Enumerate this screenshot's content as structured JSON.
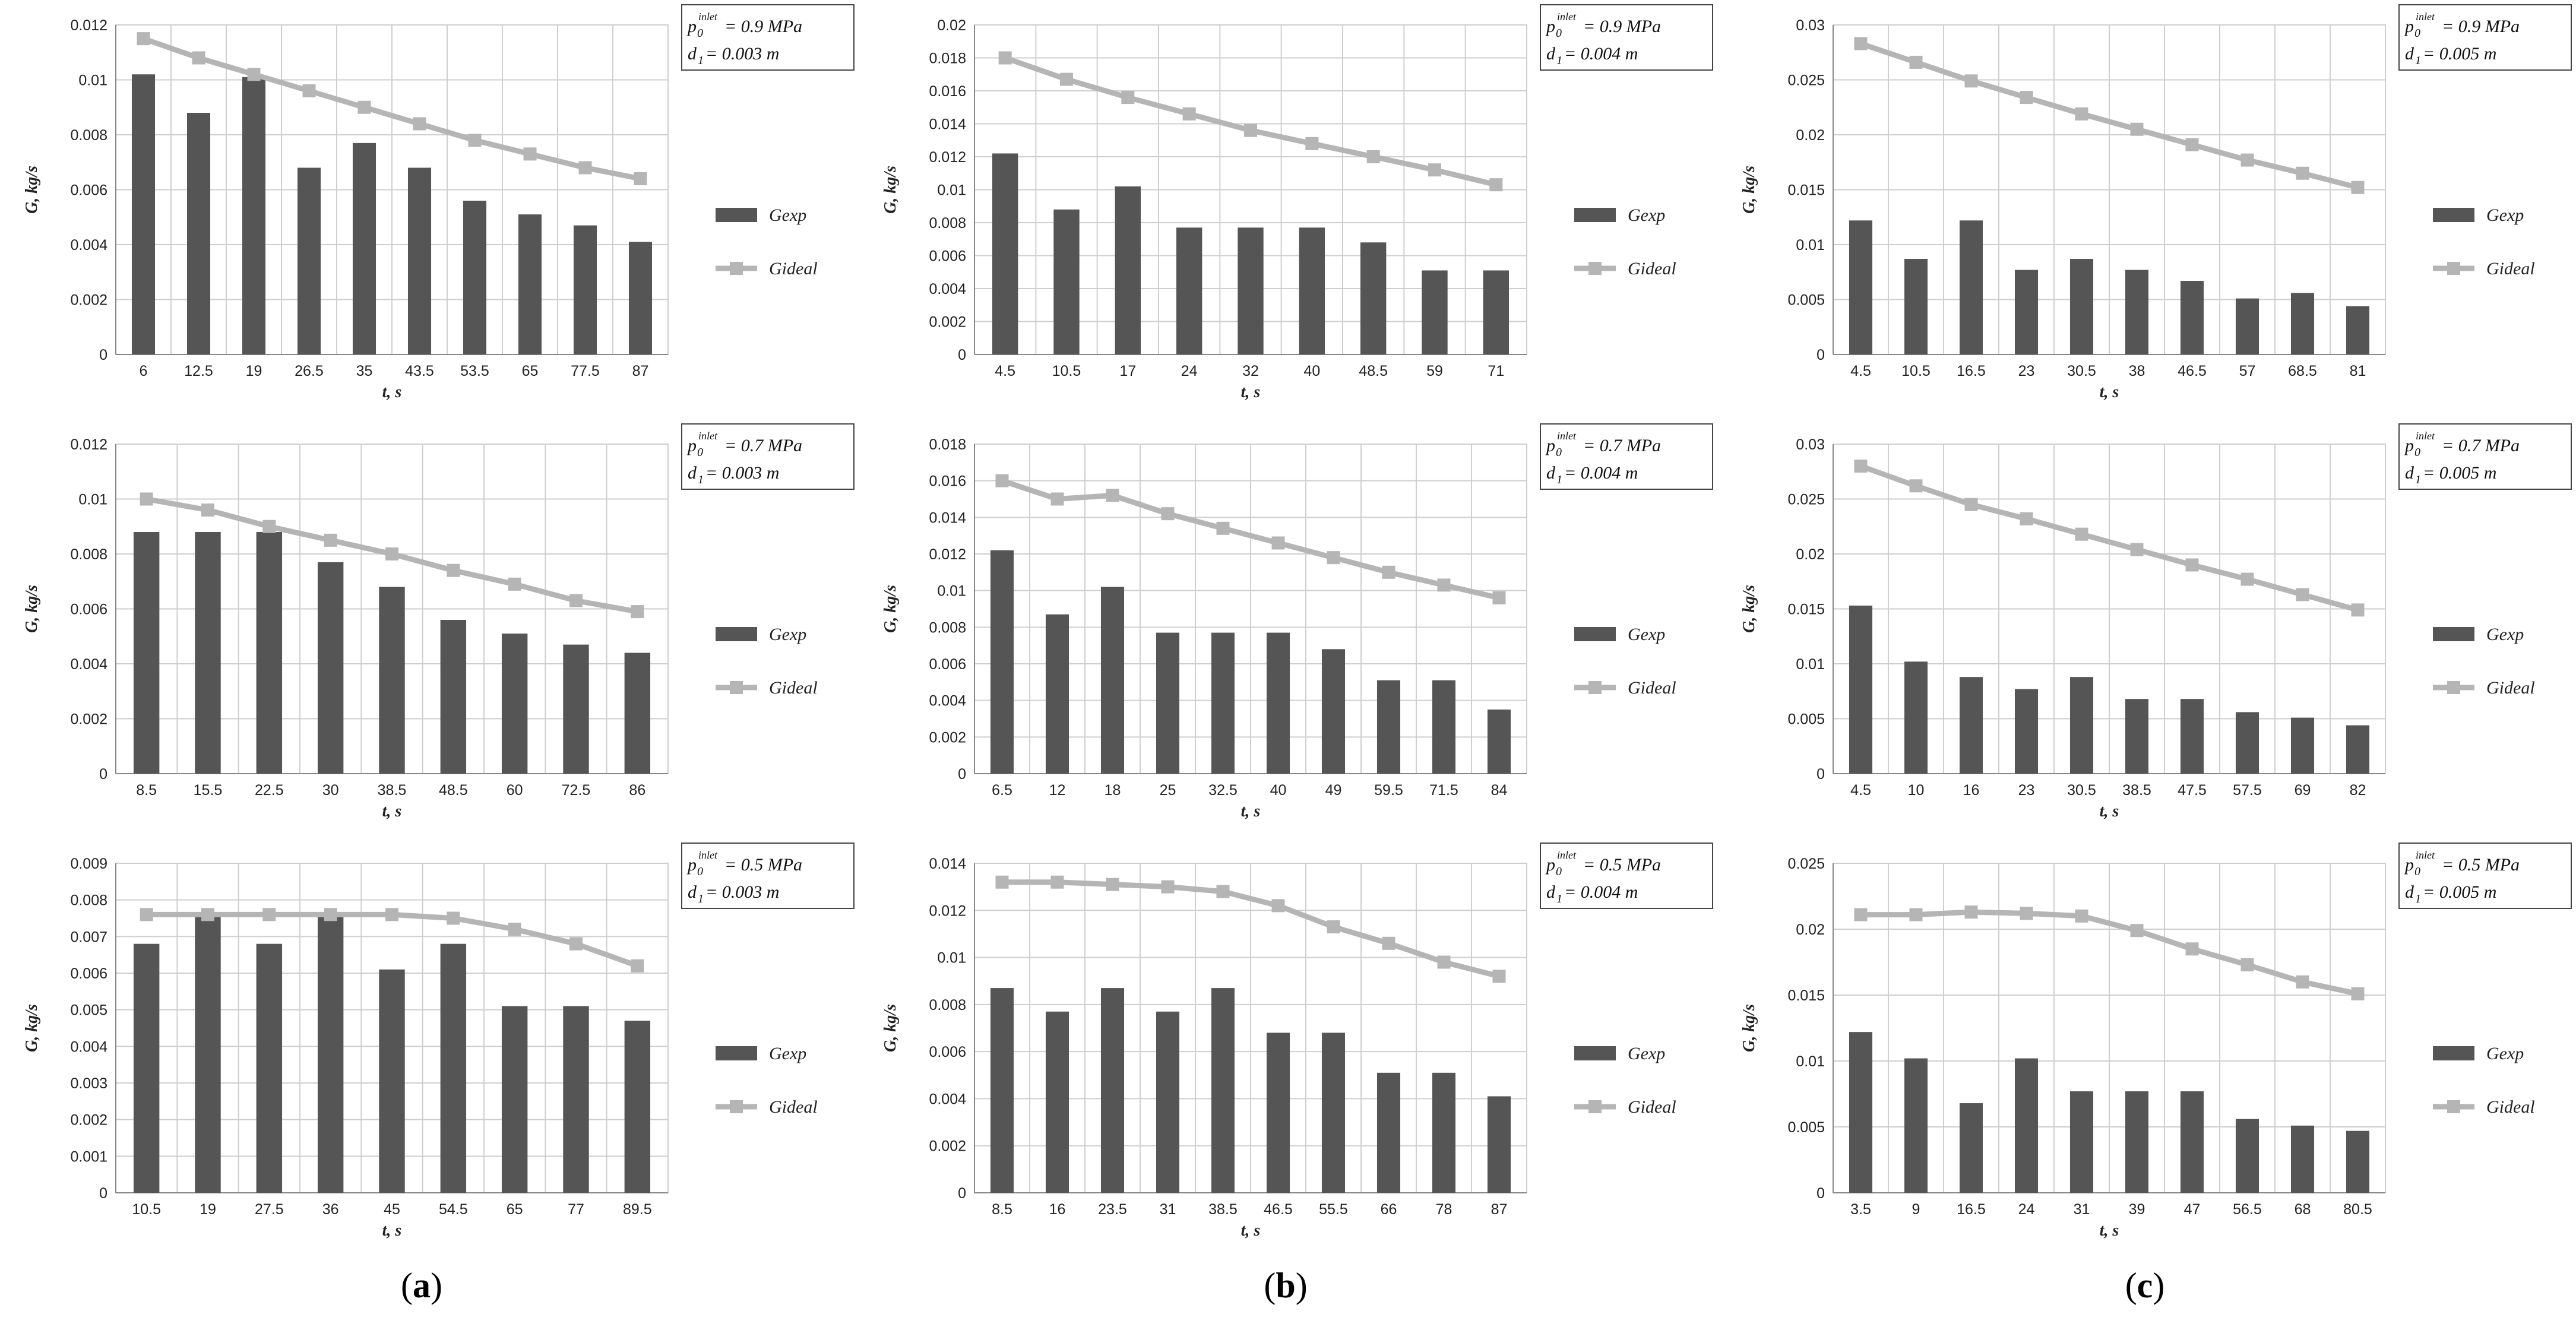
{
  "colors": {
    "gexp": "#555555",
    "gideal": "#b5b5b5",
    "grid": "#cfcfcf",
    "box": "#444444"
  },
  "column_labels": [
    {
      "open": "(",
      "letter": "a",
      "close": ")"
    },
    {
      "open": "(",
      "letter": "b",
      "close": ")"
    },
    {
      "open": "(",
      "letter": "c",
      "close": ")"
    }
  ],
  "chart_data": [
    {
      "id": "a1",
      "type": "bar",
      "title": "",
      "xlabel": "t, s",
      "ylabel": "G, kg/s",
      "ylim": [
        0,
        0.012
      ],
      "yticks": [
        "0",
        "0.002",
        "0.004",
        "0.006",
        "0.008",
        "0.01",
        "0.012"
      ],
      "categories": [
        "6",
        "12.5",
        "19",
        "26.5",
        "35",
        "43.5",
        "53.5",
        "65",
        "77.5",
        "87"
      ],
      "series": [
        {
          "name": "Gexp",
          "kind": "bar",
          "values": [
            0.0102,
            0.0088,
            0.0101,
            0.0068,
            0.0077,
            0.0068,
            0.0056,
            0.0051,
            0.0047,
            0.0041
          ]
        },
        {
          "name": "Gideal",
          "kind": "line",
          "values": [
            0.0115,
            0.0108,
            0.0102,
            0.0096,
            0.009,
            0.0084,
            0.0078,
            0.0073,
            0.0068,
            0.0064
          ]
        }
      ],
      "params": {
        "p_label": "p",
        "p_sup": "inlet",
        "p_sub": "0",
        "p_value": " = 0.9 MPa",
        "d_label": "d",
        "d_sub": "1",
        "d_value": " = 0.003 m"
      }
    },
    {
      "id": "b1",
      "type": "bar",
      "title": "",
      "xlabel": "t, s",
      "ylabel": "G, kg/s",
      "ylim": [
        0,
        0.02
      ],
      "yticks": [
        "0",
        "0.002",
        "0.004",
        "0.006",
        "0.008",
        "0.01",
        "0.012",
        "0.014",
        "0.016",
        "0.018",
        "0.02"
      ],
      "categories": [
        "4.5",
        "10.5",
        "17",
        "24",
        "32",
        "40",
        "48.5",
        "59",
        "71"
      ],
      "series": [
        {
          "name": "Gexp",
          "kind": "bar",
          "values": [
            0.0122,
            0.0088,
            0.0102,
            0.0077,
            0.0077,
            0.0077,
            0.0068,
            0.0051,
            0.0051
          ]
        },
        {
          "name": "Gideal",
          "kind": "line",
          "values": [
            0.018,
            0.0167,
            0.0156,
            0.0146,
            0.0136,
            0.0128,
            0.012,
            0.0112,
            0.0103
          ]
        }
      ],
      "params": {
        "p_label": "p",
        "p_sup": "inlet",
        "p_sub": "0",
        "p_value": " = 0.9 MPa",
        "d_label": "d",
        "d_sub": "1",
        "d_value": " = 0.004 m"
      }
    },
    {
      "id": "c1",
      "type": "bar",
      "title": "",
      "xlabel": "t, s",
      "ylabel": "G, kg/s",
      "ylim": [
        0,
        0.03
      ],
      "yticks": [
        "0",
        "0.005",
        "0.01",
        "0.015",
        "0.02",
        "0.025",
        "0.03"
      ],
      "categories": [
        "4.5",
        "10.5",
        "16.5",
        "23",
        "30.5",
        "38",
        "46.5",
        "57",
        "68.5",
        "81"
      ],
      "series": [
        {
          "name": "Gexp",
          "kind": "bar",
          "values": [
            0.0122,
            0.0087,
            0.0122,
            0.0077,
            0.0087,
            0.0077,
            0.0067,
            0.0051,
            0.0056,
            0.0044
          ]
        },
        {
          "name": "Gideal",
          "kind": "line",
          "values": [
            0.0283,
            0.0266,
            0.0249,
            0.0234,
            0.0219,
            0.0205,
            0.0191,
            0.0177,
            0.0165,
            0.0152
          ]
        }
      ],
      "params": {
        "p_label": "p",
        "p_sup": "inlet",
        "p_sub": "0",
        "p_value": " = 0.9 MPa",
        "d_label": "d",
        "d_sub": "1",
        "d_value": " = 0.005 m"
      }
    },
    {
      "id": "a2",
      "type": "bar",
      "title": "",
      "xlabel": "t, s",
      "ylabel": "G, kg/s",
      "ylim": [
        0,
        0.012
      ],
      "yticks": [
        "0",
        "0.002",
        "0.004",
        "0.006",
        "0.008",
        "0.01",
        "0.012"
      ],
      "categories": [
        "8.5",
        "15.5",
        "22.5",
        "30",
        "38.5",
        "48.5",
        "60",
        "72.5",
        "86"
      ],
      "series": [
        {
          "name": "Gexp",
          "kind": "bar",
          "values": [
            0.0088,
            0.0088,
            0.0088,
            0.0077,
            0.0068,
            0.0056,
            0.0051,
            0.0047,
            0.0044
          ]
        },
        {
          "name": "Gideal",
          "kind": "line",
          "values": [
            0.01,
            0.0096,
            0.009,
            0.0085,
            0.008,
            0.0074,
            0.0069,
            0.0063,
            0.0059
          ]
        }
      ],
      "params": {
        "p_label": "p",
        "p_sup": "inlet",
        "p_sub": "0",
        "p_value": " = 0.7 MPa",
        "d_label": "d",
        "d_sub": "1",
        "d_value": " = 0.003 m"
      }
    },
    {
      "id": "b2",
      "type": "bar",
      "title": "",
      "xlabel": "t, s",
      "ylabel": "G, kg/s",
      "ylim": [
        0,
        0.018
      ],
      "yticks": [
        "0",
        "0.002",
        "0.004",
        "0.006",
        "0.008",
        "0.01",
        "0.012",
        "0.014",
        "0.016",
        "0.018"
      ],
      "categories": [
        "6.5",
        "12",
        "18",
        "25",
        "32.5",
        "40",
        "49",
        "59.5",
        "71.5",
        "84"
      ],
      "series": [
        {
          "name": "Gexp",
          "kind": "bar",
          "values": [
            0.0122,
            0.0087,
            0.0102,
            0.0077,
            0.0077,
            0.0077,
            0.0068,
            0.0051,
            0.0051,
            0.0035
          ]
        },
        {
          "name": "Gideal",
          "kind": "line",
          "values": [
            0.016,
            0.015,
            0.0152,
            0.0142,
            0.0134,
            0.0126,
            0.0118,
            0.011,
            0.0103,
            0.0096
          ]
        }
      ],
      "params": {
        "p_label": "p",
        "p_sup": "inlet",
        "p_sub": "0",
        "p_value": " = 0.7 MPa",
        "d_label": "d",
        "d_sub": "1",
        "d_value": " = 0.004 m"
      }
    },
    {
      "id": "c2",
      "type": "bar",
      "title": "",
      "xlabel": "t, s",
      "ylabel": "G, kg/s",
      "ylim": [
        0,
        0.03
      ],
      "yticks": [
        "0",
        "0.005",
        "0.01",
        "0.015",
        "0.02",
        "0.025",
        "0.03"
      ],
      "categories": [
        "4.5",
        "10",
        "16",
        "23",
        "30.5",
        "38.5",
        "47.5",
        "57.5",
        "69",
        "82"
      ],
      "series": [
        {
          "name": "Gexp",
          "kind": "bar",
          "values": [
            0.0153,
            0.0102,
            0.0088,
            0.0077,
            0.0088,
            0.0068,
            0.0068,
            0.0056,
            0.0051,
            0.0044
          ]
        },
        {
          "name": "Gideal",
          "kind": "line",
          "values": [
            0.028,
            0.0262,
            0.0245,
            0.0232,
            0.0218,
            0.0204,
            0.019,
            0.0177,
            0.0163,
            0.0149
          ]
        }
      ],
      "params": {
        "p_label": "p",
        "p_sup": "inlet",
        "p_sub": "0",
        "p_value": " = 0.7 MPa",
        "d_label": "d",
        "d_sub": "1",
        "d_value": " = 0.005 m"
      }
    },
    {
      "id": "a3",
      "type": "bar",
      "title": "",
      "xlabel": "t, s",
      "ylabel": "G, kg/s",
      "ylim": [
        0,
        0.009
      ],
      "yticks": [
        "0",
        "0.001",
        "0.002",
        "0.003",
        "0.004",
        "0.005",
        "0.006",
        "0.007",
        "0.008",
        "0.009"
      ],
      "categories": [
        "10.5",
        "19",
        "27.5",
        "36",
        "45",
        "54.5",
        "65",
        "77",
        "89.5"
      ],
      "series": [
        {
          "name": "Gexp",
          "kind": "bar",
          "values": [
            0.0068,
            0.0076,
            0.0068,
            0.0076,
            0.0061,
            0.0068,
            0.0051,
            0.0051,
            0.0047
          ]
        },
        {
          "name": "Gideal",
          "kind": "line",
          "values": [
            0.0076,
            0.0076,
            0.0076,
            0.0076,
            0.0076,
            0.0075,
            0.0072,
            0.0068,
            0.0062
          ]
        }
      ],
      "params": {
        "p_label": "p",
        "p_sup": "inlet",
        "p_sub": "0",
        "p_value": " = 0.5 MPa",
        "d_label": "d",
        "d_sub": "1",
        "d_value": " = 0.003 m"
      }
    },
    {
      "id": "b3",
      "type": "bar",
      "title": "",
      "xlabel": "t, s",
      "ylabel": "G, kg/s",
      "ylim": [
        0,
        0.014
      ],
      "yticks": [
        "0",
        "0.002",
        "0.004",
        "0.006",
        "0.008",
        "0.01",
        "0.012",
        "0.014"
      ],
      "categories": [
        "8.5",
        "16",
        "23.5",
        "31",
        "38.5",
        "46.5",
        "55.5",
        "66",
        "78",
        "87"
      ],
      "series": [
        {
          "name": "Gexp",
          "kind": "bar",
          "values": [
            0.0087,
            0.0077,
            0.0087,
            0.0077,
            0.0087,
            0.0068,
            0.0068,
            0.0051,
            0.0051,
            0.0041
          ]
        },
        {
          "name": "Gideal",
          "kind": "line",
          "values": [
            0.0132,
            0.0132,
            0.0131,
            0.013,
            0.0128,
            0.0122,
            0.0113,
            0.0106,
            0.0098,
            0.0092
          ]
        }
      ],
      "params": {
        "p_label": "p",
        "p_sup": "inlet",
        "p_sub": "0",
        "p_value": " = 0.5 MPa",
        "d_label": "d",
        "d_sub": "1",
        "d_value": " = 0.004 m"
      }
    },
    {
      "id": "c3",
      "type": "bar",
      "title": "",
      "xlabel": "t, s",
      "ylabel": "G, kg/s",
      "ylim": [
        0,
        0.025
      ],
      "yticks": [
        "0",
        "0.005",
        "0.01",
        "0.015",
        "0.02",
        "0.025"
      ],
      "categories": [
        "3.5",
        "9",
        "16.5",
        "24",
        "31",
        "39",
        "47",
        "56.5",
        "68",
        "80.5"
      ],
      "series": [
        {
          "name": "Gexp",
          "kind": "bar",
          "values": [
            0.0122,
            0.0102,
            0.0068,
            0.0102,
            0.0077,
            0.0077,
            0.0077,
            0.0056,
            0.0051,
            0.0047
          ]
        },
        {
          "name": "Gideal",
          "kind": "line",
          "values": [
            0.0211,
            0.0211,
            0.0213,
            0.0212,
            0.021,
            0.0199,
            0.0185,
            0.0173,
            0.016,
            0.0151
          ]
        }
      ],
      "params": {
        "p_label": "p",
        "p_sup": "inlet",
        "p_sub": "0",
        "p_value": " = 0.5 MPa",
        "d_label": "d",
        "d_sub": "1",
        "d_value": " = 0.005 m"
      }
    }
  ]
}
